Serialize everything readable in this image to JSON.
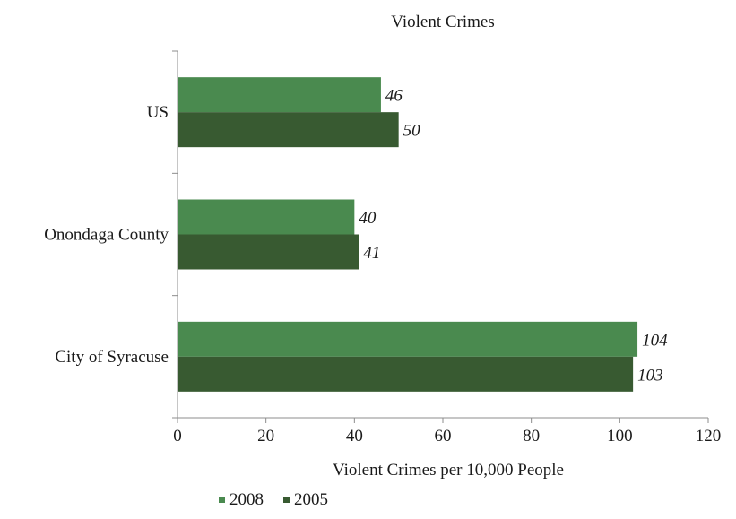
{
  "chart_data": {
    "type": "bar",
    "orientation": "horizontal",
    "title": "Violent Crimes",
    "xlabel": "Violent Crimes per 10,000 People",
    "ylabel": "",
    "categories": [
      "US",
      "Onondaga County",
      "City of Syracuse"
    ],
    "series": [
      {
        "name": "2008",
        "color": "#4a8a4f",
        "values": [
          46,
          40,
          104
        ]
      },
      {
        "name": "2005",
        "color": "#385a31",
        "values": [
          50,
          41,
          103
        ]
      }
    ],
    "xlim": [
      0,
      120
    ],
    "xticks": [
      0,
      20,
      40,
      60,
      80,
      100,
      120
    ],
    "grid": false,
    "legend": "bottom",
    "data_labels": true
  }
}
